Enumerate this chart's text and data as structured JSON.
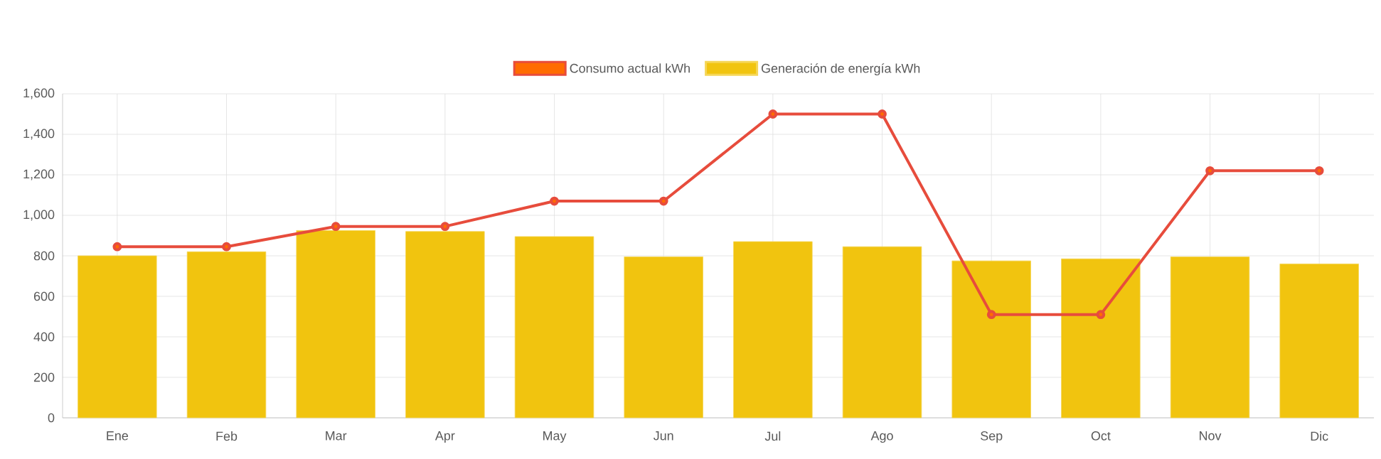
{
  "chart_data": {
    "type": "bar",
    "categories": [
      "Ene",
      "Feb",
      "Mar",
      "Apr",
      "May",
      "Jun",
      "Jul",
      "Ago",
      "Sep",
      "Oct",
      "Nov",
      "Dic"
    ],
    "series": [
      {
        "name": "Consumo actual kWh",
        "type": "line",
        "color": "#e74c3c",
        "values": [
          845,
          845,
          945,
          945,
          1070,
          1070,
          1500,
          1500,
          510,
          510,
          1220,
          1220
        ]
      },
      {
        "name": "Generación de energía kWh",
        "color": "#f1c40f",
        "values": [
          800,
          820,
          925,
          920,
          895,
          795,
          870,
          845,
          775,
          785,
          795,
          760
        ]
      }
    ],
    "ylim": [
      0,
      1600
    ],
    "yticks": [
      {
        "value": 0,
        "label": "0"
      },
      {
        "value": 200,
        "label": "200"
      },
      {
        "value": 400,
        "label": "400"
      },
      {
        "value": 600,
        "label": "600"
      },
      {
        "value": 800,
        "label": "800"
      },
      {
        "value": 1000,
        "label": "1,000"
      },
      {
        "value": 1200,
        "label": "1,200"
      },
      {
        "value": 1400,
        "label": "1,400"
      },
      {
        "value": 1600,
        "label": "1,600"
      }
    ],
    "grid": true,
    "legend": "top",
    "marker": "circle",
    "line_style": "solid"
  }
}
